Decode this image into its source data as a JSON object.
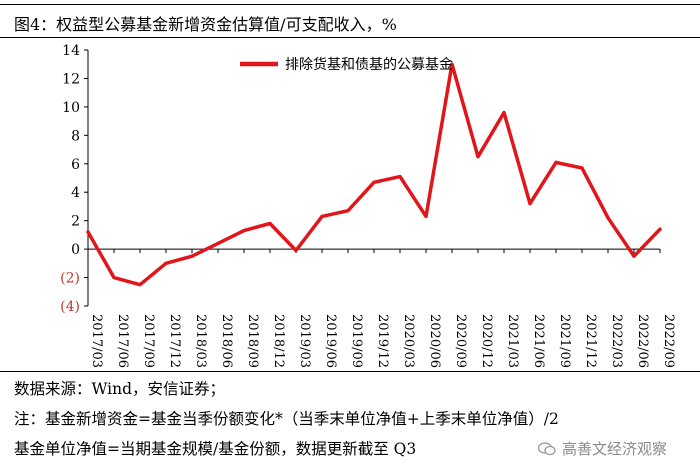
{
  "header": {
    "title": "图4：权益型公募基金新增资金估算值/可支配收入，%"
  },
  "chart_data": {
    "type": "line",
    "title": "",
    "xlabel": "",
    "ylabel": "",
    "x": [
      "2017/03",
      "2017/06",
      "2017/09",
      "2017/12",
      "2018/03",
      "2018/06",
      "2018/09",
      "2018/12",
      "2019/03",
      "2019/06",
      "2019/09",
      "2019/12",
      "2020/03",
      "2020/06",
      "2020/09",
      "2020/12",
      "2021/03",
      "2021/06",
      "2021/09",
      "2021/12",
      "2022/03",
      "2022/06",
      "2022/09"
    ],
    "series": [
      {
        "name": "排除货基和债基的公募基金",
        "values": [
          1.2,
          -2.0,
          -2.5,
          -1.0,
          -0.5,
          0.4,
          1.3,
          1.8,
          -0.1,
          2.3,
          2.7,
          4.7,
          5.1,
          2.3,
          13.0,
          6.5,
          9.6,
          3.2,
          6.1,
          5.7,
          2.2,
          -0.5,
          1.4
        ]
      }
    ],
    "ylim": [
      -4,
      14
    ],
    "yticks": [
      -4,
      -2,
      0,
      2,
      4,
      6,
      8,
      10,
      12,
      14
    ],
    "ytick_labels": [
      "(4)",
      "(2)",
      "0",
      "2",
      "4",
      "6",
      "8",
      "10",
      "12",
      "14"
    ],
    "grid": false,
    "legend_position": "top-center",
    "series_color": "#e0161b",
    "negative_label_color": "#c0392b"
  },
  "footer": {
    "source": "数据来源：Wind，安信证券；",
    "note1": "注：基金新增资金=基金当季份额变化*（当季末单位净值+上季末单位净值）/2",
    "note2": "基金单位净值=当期基金规模/基金份额，数据更新截至 Q3",
    "watermark": "高善文经济观察"
  }
}
